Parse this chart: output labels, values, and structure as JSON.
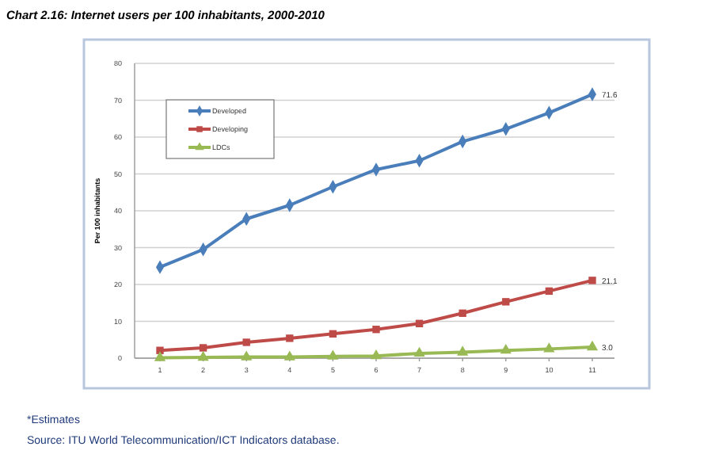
{
  "chart_data": {
    "type": "line",
    "title": "Chart 2.16: Internet users per 100 inhabitants, 2000-2010",
    "ylabel": "Per 100 inhabitants",
    "categories": [
      "1",
      "2",
      "3",
      "4",
      "5",
      "6",
      "7",
      "8",
      "9",
      "10",
      "11"
    ],
    "series": [
      {
        "name": "Developed",
        "color": "#4a7ebb",
        "marker": "diamond",
        "values": [
          24.7,
          29.5,
          37.8,
          41.5,
          46.5,
          51.2,
          53.6,
          58.8,
          62.2,
          66.6,
          71.6
        ],
        "value_labels": [
          null,
          null,
          null,
          null,
          null,
          null,
          null,
          null,
          null,
          null,
          "71.6"
        ]
      },
      {
        "name": "Developing",
        "color": "#be4b48",
        "marker": "square",
        "values": [
          2.1,
          2.8,
          4.3,
          5.4,
          6.6,
          7.8,
          9.4,
          12.2,
          15.3,
          18.2,
          21.1
        ],
        "value_labels": [
          null,
          null,
          null,
          null,
          null,
          null,
          null,
          null,
          null,
          null,
          "21.1"
        ]
      },
      {
        "name": "LDCs",
        "color": "#98b954",
        "marker": "triangle",
        "values": [
          0.1,
          0.2,
          0.3,
          0.3,
          0.5,
          0.6,
          1.3,
          1.6,
          2.1,
          2.5,
          3.0
        ],
        "value_labels": [
          null,
          null,
          null,
          null,
          null,
          null,
          null,
          null,
          null,
          null,
          "3.0"
        ]
      }
    ],
    "ylim": [
      0,
      80
    ],
    "yticks": [
      0,
      10,
      20,
      30,
      40,
      50,
      60,
      70,
      80
    ],
    "grid": "y",
    "legend": "top left",
    "annotations": [
      "*Estimates",
      "Source: ITU World Telecommunication/ICT Indicators database."
    ]
  }
}
